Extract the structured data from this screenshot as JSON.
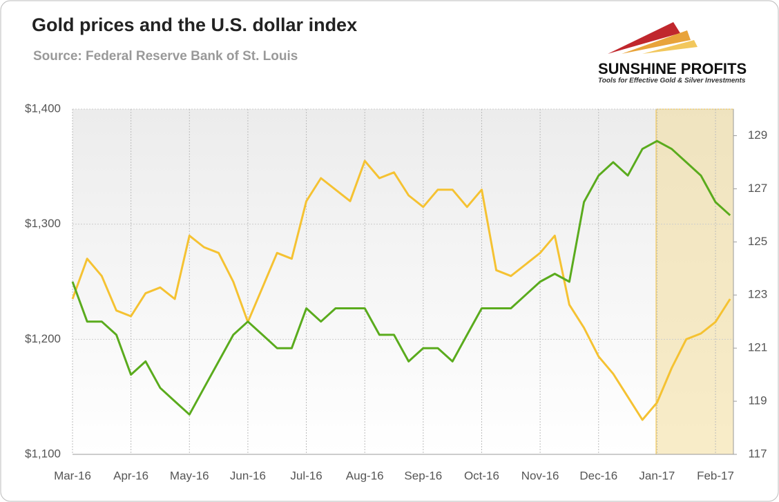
{
  "chart_data": {
    "type": "line",
    "title": "Gold prices and the U.S. dollar index",
    "subtitle": "Source: Federal Reserve Bank of St. Louis",
    "logo": {
      "name": "SUNSHINE PROFITS",
      "tagline": "Tools for Effective Gold & Silver Investments"
    },
    "categories": [
      "Mar-16",
      null,
      null,
      null,
      "Apr-16",
      null,
      null,
      null,
      "May-16",
      null,
      null,
      null,
      "Jun-16",
      null,
      null,
      null,
      "Jul-16",
      null,
      null,
      null,
      "Aug-16",
      null,
      null,
      null,
      "Sep-16",
      null,
      null,
      null,
      "Oct-16",
      null,
      null,
      null,
      "Nov-16",
      null,
      null,
      null,
      "Dec-16",
      null,
      null,
      null,
      "Jan-17",
      null,
      null,
      null,
      "Feb-17",
      null
    ],
    "series": [
      {
        "name": "Gold",
        "color": "#f5c232",
        "axis": "y",
        "values": [
          1235,
          1270,
          1255,
          1225,
          1220,
          1240,
          1245,
          1235,
          1290,
          1280,
          1275,
          1250,
          1215,
          1245,
          1275,
          1270,
          1320,
          1340,
          1330,
          1320,
          1355,
          1340,
          1345,
          1325,
          1315,
          1330,
          1330,
          1315,
          1330,
          1260,
          1255,
          1265,
          1275,
          1290,
          1230,
          1210,
          1185,
          1170,
          1150,
          1130,
          1145,
          1175,
          1200,
          1205,
          1215,
          1235
        ]
      },
      {
        "name": "U.S. dollar index",
        "color": "#5aab1d",
        "axis": "y2",
        "values": [
          123.5,
          122,
          122,
          121.5,
          120,
          120.5,
          119.5,
          119,
          118.5,
          119.5,
          120.5,
          121.5,
          122,
          121.5,
          121,
          121,
          122.5,
          122,
          122.5,
          122.5,
          122.5,
          121.5,
          121.5,
          120.5,
          121,
          121,
          120.5,
          121.5,
          122.5,
          122.5,
          122.5,
          123,
          123.5,
          123.8,
          123.5,
          126.5,
          127.5,
          128,
          127.5,
          128.5,
          128.8,
          128.5,
          128,
          127.5,
          126.5,
          126
        ]
      }
    ],
    "ylim": [
      1100,
      1400
    ],
    "yticks": [
      {
        "value": 1100,
        "label": "$1,100"
      },
      {
        "value": 1200,
        "label": "$1,200"
      },
      {
        "value": 1300,
        "label": "$1,300"
      },
      {
        "value": 1400,
        "label": "$1,400"
      }
    ],
    "y2lim": [
      117,
      130
    ],
    "y2ticks": [
      117,
      119,
      121,
      123,
      125,
      127,
      129
    ],
    "grid": true
  }
}
